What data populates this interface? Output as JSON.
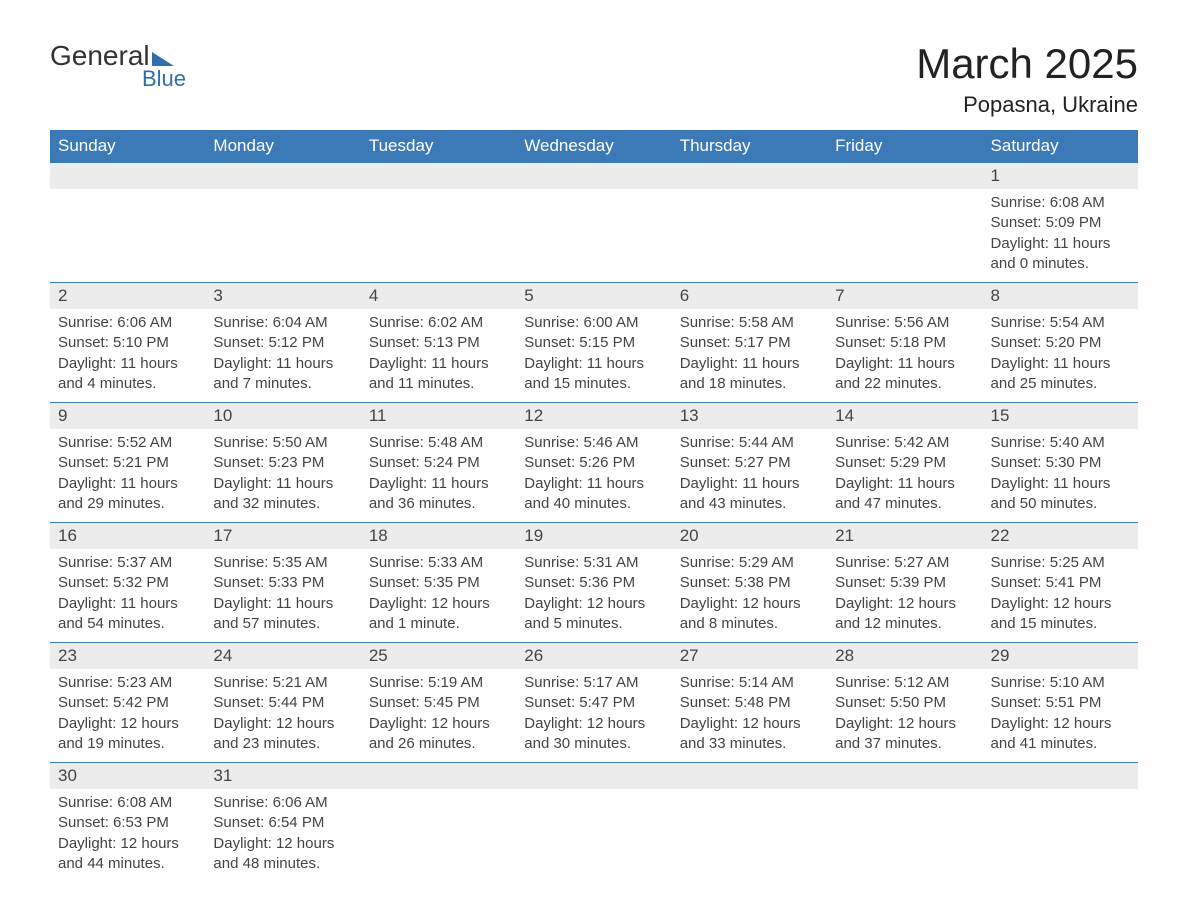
{
  "brand": {
    "top": "General",
    "bottom": "Blue"
  },
  "title": "March 2025",
  "location": "Popasna, Ukraine",
  "colors": {
    "header_bg": "#3b79b7",
    "header_text": "#ffffff",
    "daynum_bg": "#ececec",
    "row_border": "#3b79b7",
    "text": "#444444",
    "brand_accent": "#2f6fb0"
  },
  "typography": {
    "title_fontsize": 42,
    "location_fontsize": 22,
    "header_fontsize": 17,
    "daynum_fontsize": 17,
    "detail_fontsize": 15
  },
  "layout": {
    "columns": 7,
    "rows": 6
  },
  "weekdays": [
    "Sunday",
    "Monday",
    "Tuesday",
    "Wednesday",
    "Thursday",
    "Friday",
    "Saturday"
  ],
  "weeks": [
    [
      null,
      null,
      null,
      null,
      null,
      null,
      {
        "n": "1",
        "sr": "Sunrise: 6:08 AM",
        "ss": "Sunset: 5:09 PM",
        "d1": "Daylight: 11 hours",
        "d2": "and 0 minutes."
      }
    ],
    [
      {
        "n": "2",
        "sr": "Sunrise: 6:06 AM",
        "ss": "Sunset: 5:10 PM",
        "d1": "Daylight: 11 hours",
        "d2": "and 4 minutes."
      },
      {
        "n": "3",
        "sr": "Sunrise: 6:04 AM",
        "ss": "Sunset: 5:12 PM",
        "d1": "Daylight: 11 hours",
        "d2": "and 7 minutes."
      },
      {
        "n": "4",
        "sr": "Sunrise: 6:02 AM",
        "ss": "Sunset: 5:13 PM",
        "d1": "Daylight: 11 hours",
        "d2": "and 11 minutes."
      },
      {
        "n": "5",
        "sr": "Sunrise: 6:00 AM",
        "ss": "Sunset: 5:15 PM",
        "d1": "Daylight: 11 hours",
        "d2": "and 15 minutes."
      },
      {
        "n": "6",
        "sr": "Sunrise: 5:58 AM",
        "ss": "Sunset: 5:17 PM",
        "d1": "Daylight: 11 hours",
        "d2": "and 18 minutes."
      },
      {
        "n": "7",
        "sr": "Sunrise: 5:56 AM",
        "ss": "Sunset: 5:18 PM",
        "d1": "Daylight: 11 hours",
        "d2": "and 22 minutes."
      },
      {
        "n": "8",
        "sr": "Sunrise: 5:54 AM",
        "ss": "Sunset: 5:20 PM",
        "d1": "Daylight: 11 hours",
        "d2": "and 25 minutes."
      }
    ],
    [
      {
        "n": "9",
        "sr": "Sunrise: 5:52 AM",
        "ss": "Sunset: 5:21 PM",
        "d1": "Daylight: 11 hours",
        "d2": "and 29 minutes."
      },
      {
        "n": "10",
        "sr": "Sunrise: 5:50 AM",
        "ss": "Sunset: 5:23 PM",
        "d1": "Daylight: 11 hours",
        "d2": "and 32 minutes."
      },
      {
        "n": "11",
        "sr": "Sunrise: 5:48 AM",
        "ss": "Sunset: 5:24 PM",
        "d1": "Daylight: 11 hours",
        "d2": "and 36 minutes."
      },
      {
        "n": "12",
        "sr": "Sunrise: 5:46 AM",
        "ss": "Sunset: 5:26 PM",
        "d1": "Daylight: 11 hours",
        "d2": "and 40 minutes."
      },
      {
        "n": "13",
        "sr": "Sunrise: 5:44 AM",
        "ss": "Sunset: 5:27 PM",
        "d1": "Daylight: 11 hours",
        "d2": "and 43 minutes."
      },
      {
        "n": "14",
        "sr": "Sunrise: 5:42 AM",
        "ss": "Sunset: 5:29 PM",
        "d1": "Daylight: 11 hours",
        "d2": "and 47 minutes."
      },
      {
        "n": "15",
        "sr": "Sunrise: 5:40 AM",
        "ss": "Sunset: 5:30 PM",
        "d1": "Daylight: 11 hours",
        "d2": "and 50 minutes."
      }
    ],
    [
      {
        "n": "16",
        "sr": "Sunrise: 5:37 AM",
        "ss": "Sunset: 5:32 PM",
        "d1": "Daylight: 11 hours",
        "d2": "and 54 minutes."
      },
      {
        "n": "17",
        "sr": "Sunrise: 5:35 AM",
        "ss": "Sunset: 5:33 PM",
        "d1": "Daylight: 11 hours",
        "d2": "and 57 minutes."
      },
      {
        "n": "18",
        "sr": "Sunrise: 5:33 AM",
        "ss": "Sunset: 5:35 PM",
        "d1": "Daylight: 12 hours",
        "d2": "and 1 minute."
      },
      {
        "n": "19",
        "sr": "Sunrise: 5:31 AM",
        "ss": "Sunset: 5:36 PM",
        "d1": "Daylight: 12 hours",
        "d2": "and 5 minutes."
      },
      {
        "n": "20",
        "sr": "Sunrise: 5:29 AM",
        "ss": "Sunset: 5:38 PM",
        "d1": "Daylight: 12 hours",
        "d2": "and 8 minutes."
      },
      {
        "n": "21",
        "sr": "Sunrise: 5:27 AM",
        "ss": "Sunset: 5:39 PM",
        "d1": "Daylight: 12 hours",
        "d2": "and 12 minutes."
      },
      {
        "n": "22",
        "sr": "Sunrise: 5:25 AM",
        "ss": "Sunset: 5:41 PM",
        "d1": "Daylight: 12 hours",
        "d2": "and 15 minutes."
      }
    ],
    [
      {
        "n": "23",
        "sr": "Sunrise: 5:23 AM",
        "ss": "Sunset: 5:42 PM",
        "d1": "Daylight: 12 hours",
        "d2": "and 19 minutes."
      },
      {
        "n": "24",
        "sr": "Sunrise: 5:21 AM",
        "ss": "Sunset: 5:44 PM",
        "d1": "Daylight: 12 hours",
        "d2": "and 23 minutes."
      },
      {
        "n": "25",
        "sr": "Sunrise: 5:19 AM",
        "ss": "Sunset: 5:45 PM",
        "d1": "Daylight: 12 hours",
        "d2": "and 26 minutes."
      },
      {
        "n": "26",
        "sr": "Sunrise: 5:17 AM",
        "ss": "Sunset: 5:47 PM",
        "d1": "Daylight: 12 hours",
        "d2": "and 30 minutes."
      },
      {
        "n": "27",
        "sr": "Sunrise: 5:14 AM",
        "ss": "Sunset: 5:48 PM",
        "d1": "Daylight: 12 hours",
        "d2": "and 33 minutes."
      },
      {
        "n": "28",
        "sr": "Sunrise: 5:12 AM",
        "ss": "Sunset: 5:50 PM",
        "d1": "Daylight: 12 hours",
        "d2": "and 37 minutes."
      },
      {
        "n": "29",
        "sr": "Sunrise: 5:10 AM",
        "ss": "Sunset: 5:51 PM",
        "d1": "Daylight: 12 hours",
        "d2": "and 41 minutes."
      }
    ],
    [
      {
        "n": "30",
        "sr": "Sunrise: 6:08 AM",
        "ss": "Sunset: 6:53 PM",
        "d1": "Daylight: 12 hours",
        "d2": "and 44 minutes."
      },
      {
        "n": "31",
        "sr": "Sunrise: 6:06 AM",
        "ss": "Sunset: 6:54 PM",
        "d1": "Daylight: 12 hours",
        "d2": "and 48 minutes."
      },
      null,
      null,
      null,
      null,
      null
    ]
  ]
}
